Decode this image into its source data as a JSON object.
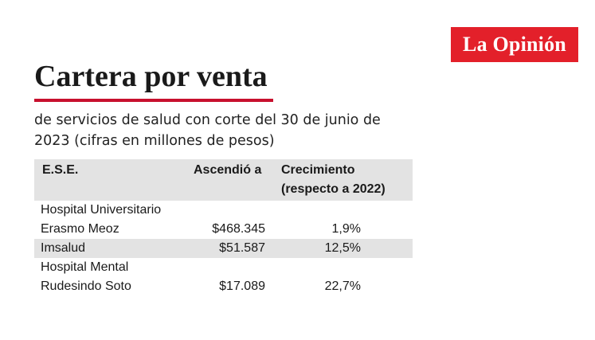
{
  "brand": {
    "logo_text": "La Opinión",
    "logo_color": "#e3202a"
  },
  "chart_data": {
    "type": "table",
    "title": "Cartera por venta",
    "subtitle": "de servicios de salud con corte del 30 de junio de 2023 (cifras en millones de pesos)",
    "columns": [
      "E.S.E.",
      "Ascendió a",
      "Crecimiento (respecto a 2022)"
    ],
    "column_lines": [
      [
        "E.S.E."
      ],
      [
        "Ascendió a"
      ],
      [
        "Crecimiento",
        "(respecto a 2022)"
      ]
    ],
    "rows": [
      {
        "name": "Hospital Universitario Erasmo Meoz",
        "name_lines": [
          "Hospital Universitario",
          "Erasmo Meoz"
        ],
        "amount": "$468.345",
        "growth": "1,9%"
      },
      {
        "name": "Imsalud",
        "name_lines": [
          "Imsalud"
        ],
        "amount": "$51.587",
        "growth": "12,5%"
      },
      {
        "name": "Hospital Mental Rudesindo Soto",
        "name_lines": [
          "Hospital Mental",
          "Rudesindo Soto"
        ],
        "amount": "$17.089",
        "growth": "22,7%"
      }
    ],
    "amount_values": [
      468345,
      51587,
      17089
    ],
    "growth_values": [
      1.9,
      12.5,
      22.7
    ],
    "colors": {
      "accent_rule": "#c8102e",
      "shaded_row": "#e3e3e3"
    }
  }
}
